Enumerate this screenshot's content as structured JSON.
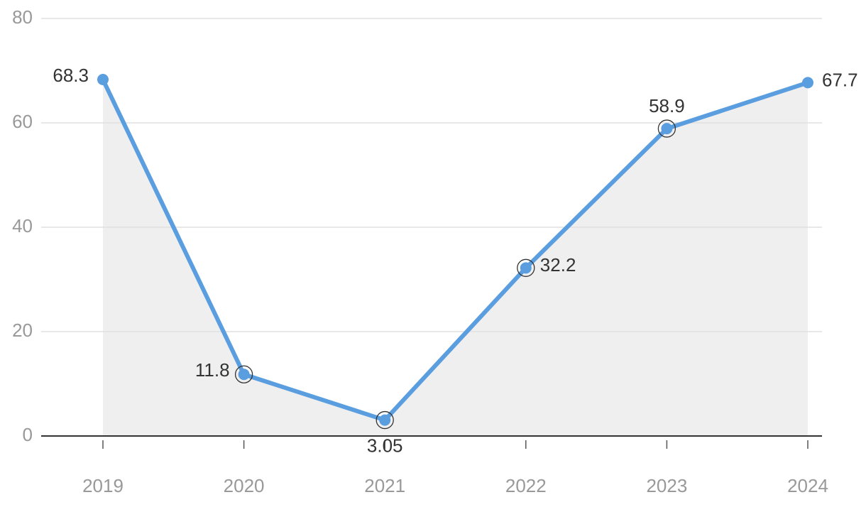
{
  "chart_data": {
    "type": "line",
    "categories": [
      "2019",
      "2020",
      "2021",
      "2022",
      "2023",
      "2024"
    ],
    "values": [
      68.3,
      11.8,
      3.05,
      32.2,
      58.9,
      67.7
    ],
    "color": "#5a9ee0",
    "area_color": "#efefef",
    "ylim": [
      0,
      80
    ],
    "yticks": [
      0,
      20,
      40,
      60,
      80
    ],
    "grid": true
  }
}
